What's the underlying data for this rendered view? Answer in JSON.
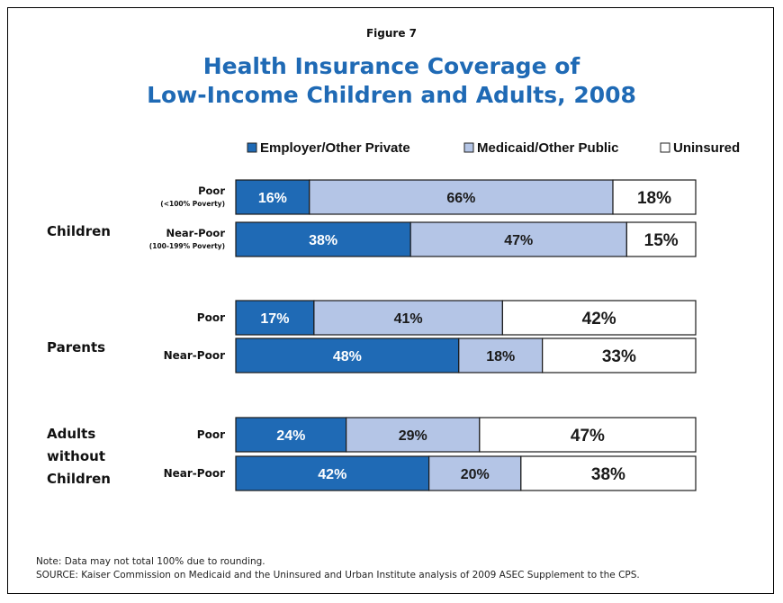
{
  "figure_label": "Figure 7",
  "title_lines": [
    "Health Insurance Coverage of",
    "Low-Income Children and Adults, 2008"
  ],
  "note": "Note: Data may not total 100% due to rounding.",
  "source": "SOURCE: Kaiser Commission on Medicaid and the Uninsured and Urban Institute analysis of 2009 ASEC Supplement to the CPS.",
  "colors": {
    "employer": "#1f6ab5",
    "medicaid": "#b4c5e6",
    "uninsured": "#ffffff",
    "title": "#1f6ab5"
  },
  "chart_data": {
    "type": "bar",
    "orientation": "horizontal",
    "stacked": true,
    "percent": true,
    "legend_position": "top",
    "series": [
      {
        "name": "Employer/Other Private",
        "values": [
          16,
          38,
          17,
          48,
          24,
          42
        ]
      },
      {
        "name": "Medicaid/Other Public",
        "values": [
          66,
          47,
          41,
          18,
          29,
          20
        ]
      },
      {
        "name": "Uninsured",
        "values": [
          18,
          15,
          42,
          33,
          47,
          38
        ]
      }
    ],
    "groups": [
      {
        "label": "Children",
        "bars": [
          {
            "label": "Poor",
            "sublabel": "(<100% Poverty)"
          },
          {
            "label": "Near-Poor",
            "sublabel": "(100-199% Poverty)"
          }
        ]
      },
      {
        "label": "Parents",
        "bars": [
          {
            "label": "Poor",
            "sublabel": ""
          },
          {
            "label": "Near-Poor",
            "sublabel": ""
          }
        ]
      },
      {
        "label": "Adults without Children",
        "bars": [
          {
            "label": "Poor",
            "sublabel": ""
          },
          {
            "label": "Near-Poor",
            "sublabel": ""
          }
        ]
      }
    ],
    "group_label_lines": [
      [
        "Children"
      ],
      [
        "Parents"
      ],
      [
        "Adults",
        "without",
        "Children"
      ]
    ]
  }
}
